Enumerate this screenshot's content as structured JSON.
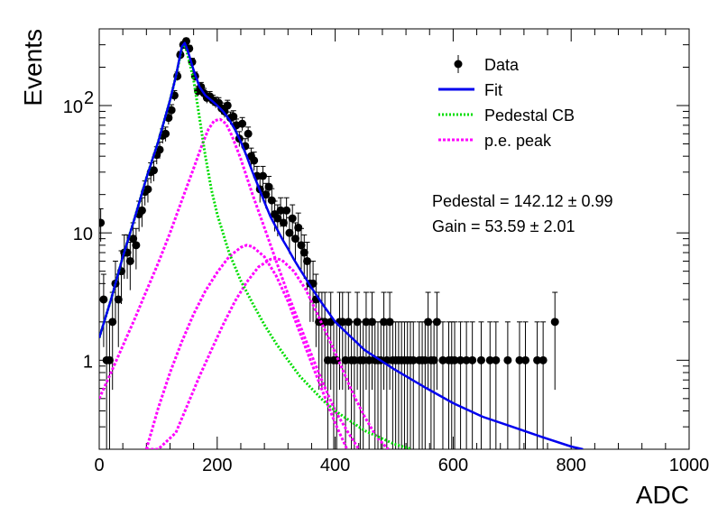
{
  "chart_data": {
    "type": "scatter",
    "xlabel": "ADC",
    "ylabel": "Events",
    "xlim": [
      0,
      1000
    ],
    "ylim": [
      0.2,
      400
    ],
    "yscale": "log",
    "x_ticks": [
      "0",
      "200",
      "400",
      "600",
      "800",
      "1000"
    ],
    "y_ticks": [
      {
        "value": 1,
        "base": "1",
        "exp": ""
      },
      {
        "value": 10,
        "base": "10",
        "exp": ""
      },
      {
        "value": 100,
        "base": "10",
        "exp": "2"
      }
    ],
    "legend": {
      "position": "top-right",
      "entries": [
        {
          "label": "Data",
          "style": "marker",
          "color": "#000000"
        },
        {
          "label": "Fit",
          "style": "solid",
          "color": "#0000ee"
        },
        {
          "label": "Pedestal CB",
          "style": "dotted",
          "color": "#00dd00"
        },
        {
          "label": "p.e. peak",
          "style": "dashed",
          "color": "#ff00ff"
        }
      ]
    },
    "annotations": [
      "Pedestal = 142.12 ± 0.99",
      "Gain = 53.59 ± 2.01"
    ],
    "colors": {
      "data": "#000000",
      "fit": "#0000ee",
      "pedestal": "#00dd00",
      "pe": "#ff00ff"
    },
    "bin_width": 5,
    "data_points": [
      [
        0,
        12
      ],
      [
        5,
        3
      ],
      [
        10,
        1
      ],
      [
        15,
        1
      ],
      [
        20,
        2
      ],
      [
        25,
        4
      ],
      [
        30,
        3
      ],
      [
        35,
        5
      ],
      [
        40,
        7
      ],
      [
        45,
        7
      ],
      [
        50,
        6
      ],
      [
        55,
        9
      ],
      [
        60,
        8
      ],
      [
        65,
        14
      ],
      [
        70,
        15
      ],
      [
        75,
        21
      ],
      [
        80,
        22
      ],
      [
        85,
        30
      ],
      [
        90,
        31
      ],
      [
        95,
        41
      ],
      [
        100,
        45
      ],
      [
        105,
        58
      ],
      [
        110,
        60
      ],
      [
        115,
        80
      ],
      [
        120,
        92
      ],
      [
        125,
        120
      ],
      [
        130,
        170
      ],
      [
        135,
        250
      ],
      [
        140,
        300
      ],
      [
        145,
        320
      ],
      [
        150,
        280
      ],
      [
        155,
        220
      ],
      [
        160,
        170
      ],
      [
        165,
        130
      ],
      [
        170,
        140
      ],
      [
        175,
        125
      ],
      [
        180,
        115
      ],
      [
        185,
        118
      ],
      [
        190,
        110
      ],
      [
        195,
        106
      ],
      [
        200,
        105
      ],
      [
        205,
        95
      ],
      [
        210,
        90
      ],
      [
        215,
        100
      ],
      [
        220,
        80
      ],
      [
        225,
        82
      ],
      [
        230,
        70
      ],
      [
        235,
        55
      ],
      [
        240,
        72
      ],
      [
        245,
        48
      ],
      [
        250,
        60
      ],
      [
        255,
        40
      ],
      [
        260,
        37
      ],
      [
        265,
        28
      ],
      [
        270,
        22
      ],
      [
        275,
        28
      ],
      [
        280,
        20
      ],
      [
        285,
        23
      ],
      [
        290,
        18
      ],
      [
        295,
        14
      ],
      [
        300,
        13
      ],
      [
        305,
        15
      ],
      [
        310,
        12
      ],
      [
        315,
        15
      ],
      [
        320,
        10
      ],
      [
        325,
        13
      ],
      [
        330,
        9
      ],
      [
        335,
        11
      ],
      [
        340,
        8
      ],
      [
        345,
        7
      ],
      [
        350,
        6
      ],
      [
        355,
        4
      ],
      [
        360,
        4
      ],
      [
        365,
        3
      ],
      [
        370,
        2
      ],
      [
        375,
        2
      ],
      [
        380,
        2
      ],
      [
        385,
        1
      ],
      [
        390,
        2
      ],
      [
        395,
        1
      ],
      [
        400,
        1
      ],
      [
        405,
        2
      ],
      [
        410,
        2
      ],
      [
        415,
        1
      ],
      [
        420,
        2
      ],
      [
        425,
        1
      ],
      [
        430,
        1
      ],
      [
        435,
        2
      ],
      [
        440,
        1
      ],
      [
        445,
        1
      ],
      [
        450,
        2
      ],
      [
        455,
        1
      ],
      [
        460,
        2
      ],
      [
        465,
        1
      ],
      [
        470,
        1
      ],
      [
        475,
        1
      ],
      [
        480,
        2
      ],
      [
        485,
        1
      ],
      [
        490,
        2
      ],
      [
        495,
        1
      ],
      [
        500,
        1
      ],
      [
        505,
        1
      ],
      [
        510,
        1
      ],
      [
        515,
        1
      ],
      [
        520,
        1
      ],
      [
        525,
        1
      ],
      [
        530,
        1
      ],
      [
        540,
        1
      ],
      [
        545,
        1
      ],
      [
        550,
        1
      ],
      [
        555,
        2
      ],
      [
        560,
        1
      ],
      [
        565,
        1
      ],
      [
        570,
        2
      ],
      [
        580,
        1
      ],
      [
        590,
        1
      ],
      [
        595,
        1
      ],
      [
        600,
        1
      ],
      [
        610,
        1
      ],
      [
        620,
        1
      ],
      [
        630,
        1
      ],
      [
        645,
        1
      ],
      [
        660,
        1
      ],
      [
        670,
        1
      ],
      [
        690,
        1
      ],
      [
        710,
        1
      ],
      [
        720,
        1
      ],
      [
        740,
        1
      ],
      [
        750,
        1
      ],
      [
        770,
        2
      ]
    ],
    "series": [
      {
        "name": "Fit",
        "points": [
          [
            0,
            1.5
          ],
          [
            20,
            3
          ],
          [
            40,
            6.5
          ],
          [
            60,
            13
          ],
          [
            80,
            27
          ],
          [
            100,
            52
          ],
          [
            120,
            110
          ],
          [
            130,
            170
          ],
          [
            140,
            290
          ],
          [
            145,
            310
          ],
          [
            150,
            270
          ],
          [
            160,
            190
          ],
          [
            170,
            140
          ],
          [
            180,
            120
          ],
          [
            190,
            110
          ],
          [
            200,
            100
          ],
          [
            210,
            90
          ],
          [
            220,
            78
          ],
          [
            230,
            65
          ],
          [
            240,
            52
          ],
          [
            250,
            40
          ],
          [
            260,
            30
          ],
          [
            270,
            23
          ],
          [
            280,
            17.5
          ],
          [
            290,
            13.5
          ],
          [
            300,
            11
          ],
          [
            310,
            9
          ],
          [
            320,
            7.5
          ],
          [
            330,
            6.2
          ],
          [
            340,
            5.2
          ],
          [
            350,
            4.4
          ],
          [
            360,
            3.7
          ],
          [
            380,
            2.7
          ],
          [
            400,
            2.0
          ],
          [
            450,
            1.2
          ],
          [
            500,
            0.85
          ],
          [
            550,
            0.62
          ],
          [
            600,
            0.46
          ],
          [
            650,
            0.36
          ],
          [
            700,
            0.3
          ],
          [
            750,
            0.25
          ],
          [
            800,
            0.21
          ],
          [
            820,
            0.2
          ]
        ]
      },
      {
        "name": "Pedestal CB",
        "points": [
          [
            0,
            1.5
          ],
          [
            20,
            3
          ],
          [
            40,
            6.5
          ],
          [
            60,
            13
          ],
          [
            80,
            27
          ],
          [
            100,
            52
          ],
          [
            120,
            110
          ],
          [
            130,
            170
          ],
          [
            140,
            280
          ],
          [
            145,
            300
          ],
          [
            150,
            250
          ],
          [
            160,
            160
          ],
          [
            170,
            80
          ],
          [
            180,
            40
          ],
          [
            190,
            22
          ],
          [
            200,
            14
          ],
          [
            220,
            7
          ],
          [
            240,
            4.2
          ],
          [
            260,
            2.8
          ],
          [
            280,
            1.9
          ],
          [
            300,
            1.35
          ],
          [
            320,
            1.0
          ],
          [
            340,
            0.75
          ],
          [
            360,
            0.6
          ],
          [
            380,
            0.48
          ],
          [
            400,
            0.4
          ],
          [
            450,
            0.28
          ],
          [
            500,
            0.22
          ],
          [
            530,
            0.2
          ]
        ]
      },
      {
        "name": "p.e. peak 1",
        "points": [
          [
            0,
            0.5
          ],
          [
            20,
            0.8
          ],
          [
            40,
            1.3
          ],
          [
            60,
            2.1
          ],
          [
            80,
            3.5
          ],
          [
            100,
            5.8
          ],
          [
            120,
            10
          ],
          [
            140,
            18
          ],
          [
            160,
            32
          ],
          [
            175,
            50
          ],
          [
            185,
            65
          ],
          [
            195,
            76
          ],
          [
            205,
            78
          ],
          [
            215,
            72
          ],
          [
            225,
            58
          ],
          [
            240,
            38
          ],
          [
            260,
            20
          ],
          [
            280,
            11
          ],
          [
            300,
            6
          ],
          [
            320,
            3.3
          ],
          [
            340,
            1.9
          ],
          [
            360,
            1.1
          ],
          [
            380,
            0.65
          ],
          [
            400,
            0.4
          ],
          [
            420,
            0.28
          ],
          [
            440,
            0.2
          ]
        ]
      },
      {
        "name": "p.e. peak 2",
        "points": [
          [
            80,
            0.2
          ],
          [
            100,
            0.42
          ],
          [
            120,
            0.8
          ],
          [
            140,
            1.4
          ],
          [
            160,
            2.3
          ],
          [
            180,
            3.5
          ],
          [
            200,
            4.9
          ],
          [
            220,
            6.5
          ],
          [
            240,
            7.7
          ],
          [
            250,
            8.0
          ],
          [
            260,
            7.8
          ],
          [
            280,
            6.5
          ],
          [
            300,
            4.6
          ],
          [
            320,
            2.9
          ],
          [
            340,
            1.65
          ],
          [
            360,
            0.95
          ],
          [
            380,
            0.55
          ],
          [
            400,
            0.32
          ],
          [
            420,
            0.2
          ]
        ]
      },
      {
        "name": "p.e. peak 3",
        "points": [
          [
            80,
            0.2
          ],
          [
            100,
            0.2
          ],
          [
            130,
            0.27
          ],
          [
            150,
            0.45
          ],
          [
            170,
            0.75
          ],
          [
            190,
            1.2
          ],
          [
            210,
            1.9
          ],
          [
            230,
            2.9
          ],
          [
            250,
            4.1
          ],
          [
            270,
            5.4
          ],
          [
            290,
            6.2
          ],
          [
            300,
            6.3
          ],
          [
            310,
            6.1
          ],
          [
            330,
            5.0
          ],
          [
            350,
            3.6
          ],
          [
            370,
            2.3
          ],
          [
            390,
            1.45
          ],
          [
            410,
            0.9
          ],
          [
            430,
            0.55
          ],
          [
            450,
            0.36
          ],
          [
            470,
            0.25
          ],
          [
            490,
            0.2
          ]
        ]
      }
    ]
  }
}
